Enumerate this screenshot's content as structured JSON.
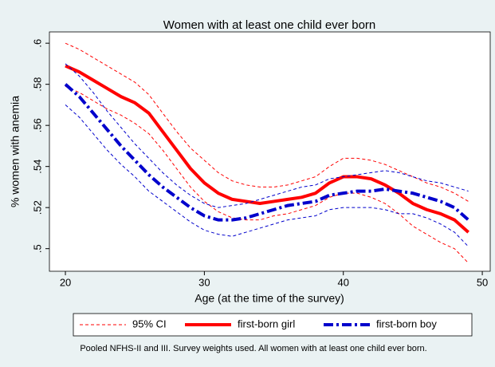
{
  "chart_data": {
    "type": "line",
    "title": "Women with at least one child ever born",
    "x_label": "Age (at the time of the survey)",
    "y_label": "% women with anemia",
    "note": "Pooled NFHS-II and III. Survey weights used. All women with at least one child ever born.",
    "x": [
      20,
      21,
      22,
      23,
      24,
      25,
      26,
      27,
      28,
      29,
      30,
      31,
      32,
      33,
      34,
      35,
      36,
      37,
      38,
      39,
      40,
      41,
      42,
      43,
      44,
      45,
      46,
      47,
      48,
      49
    ],
    "series": [
      {
        "name": "95% CI",
        "color": "#ff0000",
        "style": "dashed",
        "width": 1,
        "values": [
          0.6,
          0.597,
          0.593,
          0.589,
          0.585,
          0.581,
          0.575,
          0.566,
          0.557,
          0.549,
          0.543,
          0.537,
          0.533,
          0.531,
          0.53,
          0.53,
          0.531,
          0.533,
          0.535,
          0.54,
          0.544,
          0.544,
          0.543,
          0.541,
          0.538,
          0.535,
          0.532,
          0.53,
          0.527,
          0.523
        ]
      },
      {
        "color": "#ff0000",
        "style": "dashed",
        "width": 1,
        "values": [
          0.579,
          0.576,
          0.572,
          0.568,
          0.565,
          0.561,
          0.556,
          0.548,
          0.539,
          0.53,
          0.523,
          0.518,
          0.515,
          0.514,
          0.514,
          0.516,
          0.517,
          0.519,
          0.521,
          0.525,
          0.527,
          0.527,
          0.525,
          0.522,
          0.517,
          0.511,
          0.507,
          0.503,
          0.5,
          0.493
        ]
      },
      {
        "name": "first-born girl",
        "color": "#ff0000",
        "style": "solid",
        "width": 4,
        "values": [
          0.589,
          0.586,
          0.582,
          0.578,
          0.574,
          0.571,
          0.566,
          0.557,
          0.548,
          0.539,
          0.532,
          0.527,
          0.524,
          0.523,
          0.522,
          0.523,
          0.524,
          0.525,
          0.527,
          0.532,
          0.535,
          0.535,
          0.534,
          0.531,
          0.527,
          0.522,
          0.519,
          0.517,
          0.514,
          0.508
        ]
      },
      {
        "color": "#0000cc",
        "style": "dashed",
        "width": 1,
        "values": [
          0.59,
          0.584,
          0.576,
          0.567,
          0.559,
          0.551,
          0.544,
          0.537,
          0.531,
          0.526,
          0.522,
          0.52,
          0.521,
          0.522,
          0.524,
          0.526,
          0.528,
          0.53,
          0.531,
          0.534,
          0.535,
          0.536,
          0.537,
          0.538,
          0.537,
          0.535,
          0.533,
          0.532,
          0.53,
          0.528
        ]
      },
      {
        "color": "#0000cc",
        "style": "dashed",
        "width": 1,
        "values": [
          0.57,
          0.564,
          0.556,
          0.548,
          0.541,
          0.535,
          0.528,
          0.523,
          0.518,
          0.513,
          0.509,
          0.507,
          0.506,
          0.508,
          0.51,
          0.512,
          0.514,
          0.515,
          0.516,
          0.519,
          0.52,
          0.52,
          0.52,
          0.519,
          0.517,
          0.517,
          0.515,
          0.512,
          0.508,
          0.501
        ]
      },
      {
        "name": "first-born boy",
        "color": "#0000cc",
        "style": "dashdot",
        "width": 4,
        "values": [
          0.58,
          0.574,
          0.566,
          0.558,
          0.55,
          0.543,
          0.536,
          0.53,
          0.525,
          0.52,
          0.516,
          0.514,
          0.514,
          0.515,
          0.517,
          0.519,
          0.521,
          0.522,
          0.523,
          0.526,
          0.527,
          0.528,
          0.528,
          0.529,
          0.528,
          0.527,
          0.525,
          0.523,
          0.52,
          0.514
        ]
      }
    ],
    "xlim": [
      18.85,
      50.57
    ],
    "ylim": [
      0.489,
      0.6055
    ],
    "xticks": [
      20,
      30,
      40,
      50
    ],
    "yticks": [
      {
        "value": 0.5,
        "label": ".5"
      },
      {
        "value": 0.52,
        "label": ".52"
      },
      {
        "value": 0.54,
        "label": ".54"
      },
      {
        "value": 0.56,
        "label": ".56"
      },
      {
        "value": 0.58,
        "label": ".58"
      },
      {
        "value": 0.6,
        "label": ".6"
      }
    ],
    "grid": false
  }
}
